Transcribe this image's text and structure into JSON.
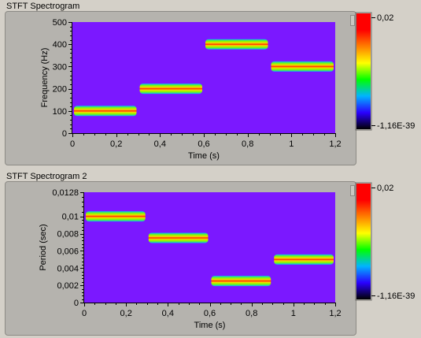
{
  "charts": [
    {
      "title": "STFT Spectrogram",
      "xlabel": "Time (s)",
      "ylabel": "Frequency (Hz)",
      "x_ticks": [
        "0",
        "0,2",
        "0,4",
        "0,6",
        "0,8",
        "1",
        "1,2"
      ],
      "y_ticks": [
        "0",
        "100",
        "200",
        "300",
        "400",
        "500"
      ],
      "colorbar_max": "0,02",
      "colorbar_min": "-1,16E-39"
    },
    {
      "title": "STFT Spectrogram 2",
      "xlabel": "Time (s)",
      "ylabel": "Period (sec)",
      "x_ticks": [
        "0",
        "0,2",
        "0,4",
        "0,6",
        "0,8",
        "1",
        "1,2"
      ],
      "y_ticks": [
        "0",
        "0,002",
        "0,004",
        "0,006",
        "0,008",
        "0,01",
        "0,0128"
      ],
      "colorbar_max": "0,02",
      "colorbar_min": "-1,16E-39"
    }
  ],
  "colors": {
    "background_field": "#7b18ff",
    "colormap": [
      "#000000",
      "#2a00ff",
      "#00b4ff",
      "#00ff00",
      "#ffff00",
      "#ff7f00",
      "#ff0000",
      "#ff0000"
    ]
  },
  "chart_data": [
    {
      "type": "heatmap",
      "title": "STFT Spectrogram",
      "xlabel": "Time (s)",
      "ylabel": "Frequency (Hz)",
      "xlim": [
        0,
        1.2
      ],
      "ylim": [
        0,
        500
      ],
      "x_ticks": [
        0,
        0.2,
        0.4,
        0.6,
        0.8,
        1.0,
        1.2
      ],
      "y_ticks": [
        0,
        100,
        200,
        300,
        400,
        500
      ],
      "colorbar": {
        "min": -1.16e-39,
        "max": 0.02
      },
      "segments": [
        {
          "t_start": 0.0,
          "t_end": 0.3,
          "value": 100
        },
        {
          "t_start": 0.3,
          "t_end": 0.6,
          "value": 200
        },
        {
          "t_start": 0.6,
          "t_end": 0.9,
          "value": 400
        },
        {
          "t_start": 0.9,
          "t_end": 1.2,
          "value": 300
        }
      ]
    },
    {
      "type": "heatmap",
      "title": "STFT Spectrogram 2",
      "xlabel": "Time (s)",
      "ylabel": "Period (sec)",
      "xlim": [
        0,
        1.2
      ],
      "ylim": [
        0,
        0.0128
      ],
      "x_ticks": [
        0,
        0.2,
        0.4,
        0.6,
        0.8,
        1.0,
        1.2
      ],
      "y_ticks": [
        0,
        0.002,
        0.004,
        0.006,
        0.008,
        0.01,
        0.0128
      ],
      "colorbar": {
        "min": -1.16e-39,
        "max": 0.02
      },
      "segments": [
        {
          "t_start": 0.0,
          "t_end": 0.3,
          "value": 0.01
        },
        {
          "t_start": 0.3,
          "t_end": 0.6,
          "value": 0.0075
        },
        {
          "t_start": 0.6,
          "t_end": 0.9,
          "value": 0.0025
        },
        {
          "t_start": 0.9,
          "t_end": 1.2,
          "value": 0.005
        }
      ]
    }
  ]
}
